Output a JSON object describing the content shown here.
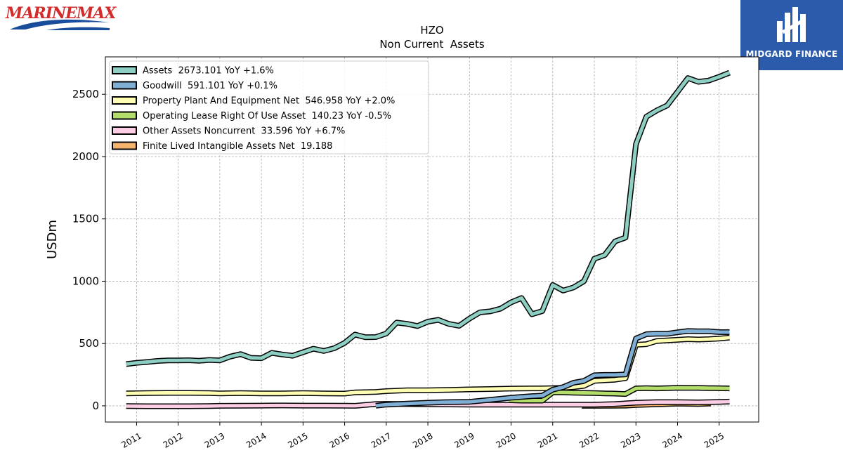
{
  "logos": {
    "left_text": "MARINEMAX",
    "right_text": "MIDGARD FINANCE",
    "right_bg": "#2d5bab",
    "left_color": "#d42b2b",
    "left_wave": "#1a4c9c"
  },
  "chart_data": {
    "type": "line",
    "title": "HZO",
    "subtitle": "Non Current  Assets",
    "xlabel": "",
    "ylabel": "USDm",
    "ylim": [
      -130,
      2800
    ],
    "xlim": [
      2010.25,
      2025.95
    ],
    "grid": true,
    "legend_position": "top-left",
    "yticks": [
      0,
      500,
      1000,
      1500,
      2000,
      2500
    ],
    "xticks": [
      2011,
      2012,
      2013,
      2014,
      2015,
      2016,
      2017,
      2018,
      2019,
      2020,
      2021,
      2022,
      2023,
      2024,
      2025
    ],
    "series": [
      {
        "name": "Assets",
        "legend": "Assets  2673.101 YoY +1.6%",
        "color": "#8ecfc4",
        "x": [
          2010.75,
          2011.0,
          2011.25,
          2011.5,
          2011.75,
          2012.0,
          2012.25,
          2012.5,
          2012.75,
          2013.0,
          2013.25,
          2013.5,
          2013.75,
          2014.0,
          2014.25,
          2014.5,
          2014.75,
          2015.0,
          2015.25,
          2015.5,
          2015.75,
          2016.0,
          2016.25,
          2016.5,
          2016.75,
          2017.0,
          2017.25,
          2017.5,
          2017.75,
          2018.0,
          2018.25,
          2018.5,
          2018.75,
          2019.0,
          2019.25,
          2019.5,
          2019.75,
          2020.0,
          2020.25,
          2020.5,
          2020.75,
          2021.0,
          2021.25,
          2021.5,
          2021.75,
          2022.0,
          2022.25,
          2022.5,
          2022.75,
          2023.0,
          2023.25,
          2023.5,
          2023.75,
          2024.0,
          2024.25,
          2024.5,
          2024.75,
          2025.0,
          2025.25
        ],
        "values": [
          335,
          345,
          352,
          360,
          365,
          365,
          366,
          362,
          368,
          365,
          395,
          415,
          385,
          382,
          425,
          412,
          402,
          430,
          458,
          440,
          462,
          505,
          572,
          550,
          552,
          580,
          668,
          658,
          640,
          675,
          690,
          658,
          642,
          700,
          750,
          758,
          780,
          830,
          865,
          735,
          760,
          970,
          925,
          950,
          1000,
          1180,
          1210,
          1320,
          1350,
          2100,
          2320,
          2370,
          2410,
          2520,
          2630,
          2600,
          2610,
          2640,
          2673
        ]
      },
      {
        "name": "Goodwill",
        "legend": "Goodwill  591.101 YoY +0.1%",
        "color": "#7fafd4",
        "x": [
          2016.75,
          2017.0,
          2017.5,
          2018.0,
          2018.5,
          2019.0,
          2019.5,
          2020.0,
          2020.5,
          2020.75,
          2021.0,
          2021.25,
          2021.5,
          2021.75,
          2022.0,
          2022.25,
          2022.5,
          2022.75,
          2023.0,
          2023.25,
          2023.5,
          2023.75,
          2024.0,
          2024.25,
          2024.5,
          2024.75,
          2025.0,
          2025.25
        ],
        "values": [
          1,
          10,
          18,
          25,
          30,
          32,
          48,
          65,
          78,
          82,
          130,
          150,
          185,
          200,
          245,
          248,
          248,
          252,
          540,
          575,
          578,
          578,
          590,
          600,
          598,
          598,
          592,
          591
        ]
      },
      {
        "name": "Property Plant And Equipment Net",
        "legend": "Property Plant And Equipment Net  546.958 YoY +2.0%",
        "color": "#ffffb3",
        "x": [
          2010.75,
          2011.25,
          2011.75,
          2012.25,
          2012.75,
          2013.0,
          2013.5,
          2014.0,
          2014.5,
          2015.0,
          2015.5,
          2016.0,
          2016.25,
          2016.75,
          2017.0,
          2017.5,
          2018.0,
          2018.5,
          2019.0,
          2019.5,
          2020.0,
          2020.5,
          2020.75,
          2021.0,
          2021.25,
          2021.5,
          2021.75,
          2022.0,
          2022.25,
          2022.5,
          2022.75,
          2023.0,
          2023.25,
          2023.5,
          2023.75,
          2024.0,
          2024.25,
          2024.5,
          2024.75,
          2025.0,
          2025.25
        ],
        "values": [
          100,
          102,
          104,
          104,
          102,
          100,
          102,
          100,
          100,
          102,
          100,
          98,
          108,
          112,
          118,
          125,
          125,
          128,
          132,
          135,
          138,
          140,
          140,
          142,
          145,
          150,
          160,
          200,
          205,
          210,
          222,
          490,
          495,
          520,
          525,
          530,
          535,
          532,
          535,
          540,
          547
        ]
      },
      {
        "name": "Operating Lease Right Of Use Asset",
        "legend": "Operating Lease Right Of Use Asset  140.23 YoY -0.5%",
        "color": "#b3de69",
        "x": [
          2019.95,
          2020.25,
          2020.5,
          2020.75,
          2021.0,
          2021.25,
          2021.5,
          2021.75,
          2022.0,
          2022.25,
          2022.5,
          2022.75,
          2023.0,
          2023.25,
          2023.5,
          2023.75,
          2024.0,
          2024.25,
          2024.5,
          2024.75,
          2025.0,
          2025.25
        ],
        "values": [
          45,
          42,
          42,
          42,
          108,
          108,
          105,
          104,
          102,
          100,
          98,
          95,
          140,
          142,
          140,
          142,
          145,
          144,
          144,
          142,
          141,
          140
        ]
      },
      {
        "name": "Other Assets Noncurrent",
        "legend": "Other Assets Noncurrent  33.596 YoY +6.7%",
        "color": "#fccde5",
        "x": [
          2010.75,
          2011.25,
          2011.75,
          2012.25,
          2012.75,
          2013.0,
          2013.5,
          2014.0,
          2014.5,
          2015.0,
          2015.5,
          2016.0,
          2016.25,
          2016.75,
          2017.0,
          2017.5,
          2018.0,
          2018.5,
          2019.0,
          2019.5,
          2020.0,
          2020.5,
          2021.0,
          2021.5,
          2022.0,
          2022.5,
          2023.0,
          2023.5,
          2024.0,
          2024.5,
          2025.0,
          2025.25
        ],
        "values": [
          -2,
          -3,
          -3,
          -3,
          -2,
          0,
          1,
          2,
          3,
          2,
          2,
          1,
          0,
          14,
          16,
          14,
          12,
          11,
          10,
          10,
          10,
          10,
          9,
          9,
          10,
          14,
          25,
          30,
          30,
          28,
          31,
          34
        ]
      },
      {
        "name": "Finite Lived Intangible Assets Net",
        "legend": "Finite Lived Intangible Assets Net  19.188",
        "color": "#f5b46b",
        "x": [
          2021.7,
          2022.0,
          2022.5,
          2022.75,
          2023.0,
          2023.5,
          2024.0,
          2024.5,
          2024.8
        ],
        "values": [
          0,
          0,
          1,
          2,
          7,
          12,
          18,
          15,
          19
        ]
      }
    ]
  }
}
